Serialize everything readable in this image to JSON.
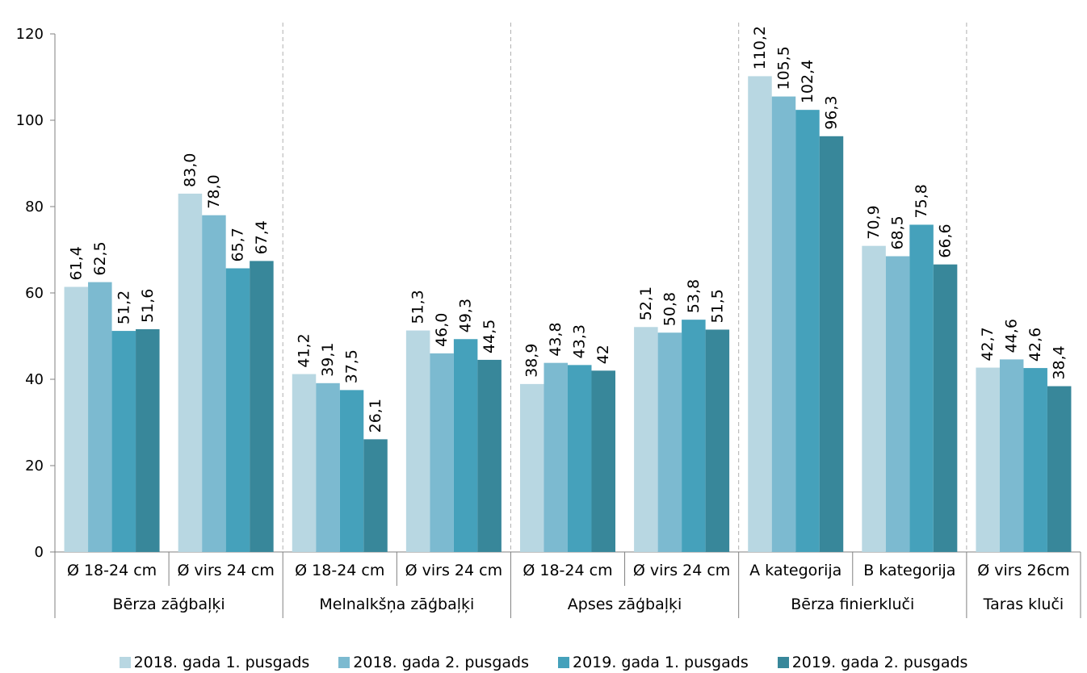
{
  "chart_data": {
    "type": "bar",
    "title": "",
    "xlabel": "",
    "ylabel": "",
    "ylim": [
      0,
      120
    ],
    "y_ticks": [
      "0",
      "20",
      "40",
      "60",
      "80",
      "100",
      "120"
    ],
    "grid": false,
    "legend_position": "bottom",
    "groups": [
      {
        "name": "Bērza zāģbaļķi",
        "categories": [
          "Ø 18-24 cm",
          "Ø virs 24 cm"
        ]
      },
      {
        "name": "Melnalkšņa zāģbaļķi",
        "categories": [
          "Ø 18-24 cm",
          "Ø virs 24 cm"
        ]
      },
      {
        "name": "Apses zāģbaļķi",
        "categories": [
          "Ø 18-24 cm",
          "Ø virs 24 cm"
        ]
      },
      {
        "name": "Bērza finierkluči",
        "categories": [
          "A kategorija",
          "B kategorija"
        ]
      },
      {
        "name": "Taras kluči",
        "categories": [
          "Ø virs 26cm"
        ]
      }
    ],
    "categories": [
      "Ø 18-24 cm",
      "Ø virs 24 cm",
      "Ø 18-24 cm",
      "Ø virs 24 cm",
      "Ø 18-24 cm",
      "Ø virs 24 cm",
      "A kategorija",
      "B kategorija",
      "Ø virs 26cm"
    ],
    "series": [
      {
        "name": "2018. gada 1. pusgads",
        "color": "#b8d7e2",
        "values": [
          61.4,
          83.0,
          41.2,
          51.3,
          38.9,
          52.1,
          110.2,
          70.9,
          42.7
        ],
        "labels": [
          "61,4",
          "83,0",
          "41,2",
          "51,3",
          "38,9",
          "52,1",
          "110,2",
          "70,9",
          "42,7"
        ]
      },
      {
        "name": "2018. gada 2. pusgads",
        "color": "#7cbad0",
        "values": [
          62.5,
          78.0,
          39.1,
          46.0,
          43.8,
          50.8,
          105.5,
          68.5,
          44.6
        ],
        "labels": [
          "62,5",
          "78,0",
          "39,1",
          "46,0",
          "43,8",
          "50,8",
          "105,5",
          "68,5",
          "44,6"
        ]
      },
      {
        "name": "2019. gada 1. pusgads",
        "color": "#45a1bb",
        "values": [
          51.2,
          65.7,
          37.5,
          49.3,
          43.3,
          53.8,
          102.4,
          75.8,
          42.6
        ],
        "labels": [
          "51,2",
          "65,7",
          "37,5",
          "49,3",
          "43,3",
          "53,8",
          "102,4",
          "75,8",
          "42,6"
        ]
      },
      {
        "name": "2019. gada 2. pusgads",
        "color": "#38879a",
        "values": [
          51.6,
          67.4,
          26.1,
          44.5,
          42.0,
          51.5,
          96.3,
          66.6,
          38.4
        ],
        "labels": [
          "51,6",
          "67,4",
          "26,1",
          "44,5",
          "42",
          "51,5",
          "96,3",
          "66,6",
          "38,4"
        ]
      }
    ]
  }
}
